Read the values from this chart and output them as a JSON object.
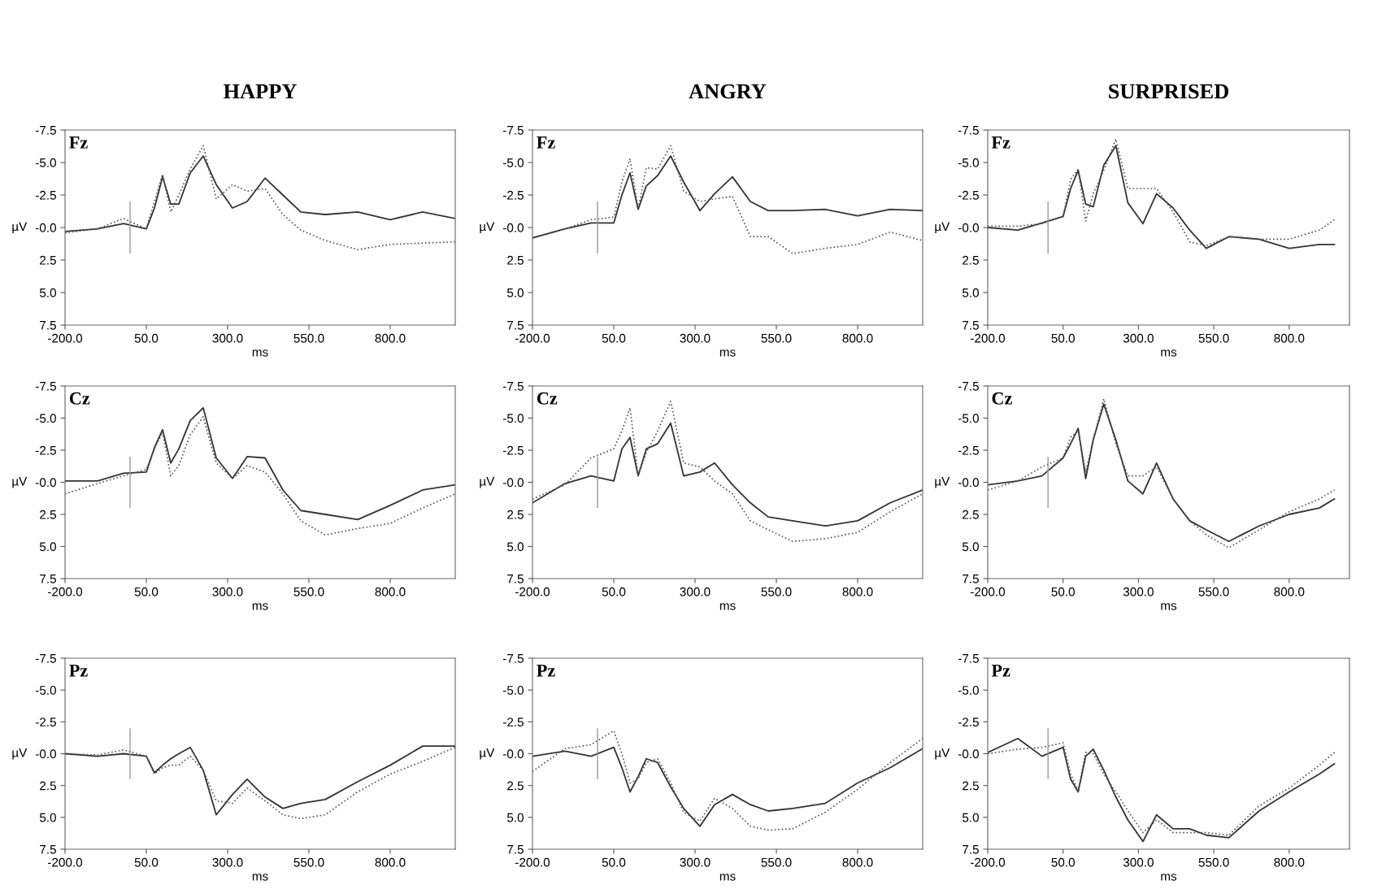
{
  "chart_data": [
    {
      "type": "line",
      "title": "HAPPY",
      "xlabel": "ms",
      "ylabel": "µV",
      "annotations": [
        "Fz"
      ],
      "x": [
        -200,
        -100,
        -20,
        50,
        75,
        100,
        125,
        150,
        185,
        225,
        265,
        315,
        360,
        415,
        470,
        525,
        600,
        700,
        800,
        900,
        1000
      ],
      "series": [
        {
          "color": "#333333",
          "line_style": "solid",
          "values": [
            0.3,
            0.1,
            -0.3,
            0.1,
            -1.5,
            -3.9,
            -1.8,
            -1.8,
            -4.2,
            -5.5,
            -3.3,
            -1.5,
            -2.0,
            -3.8,
            -2.5,
            -1.2,
            -1.0,
            -1.2,
            -0.6,
            -1.2,
            -0.7
          ]
        },
        {
          "color": "#555555",
          "line_style": "dotted",
          "values": [
            0.4,
            0.1,
            -0.7,
            0.1,
            -2.0,
            -4.1,
            -1.2,
            -2.5,
            -4.5,
            -6.3,
            -2.2,
            -3.3,
            -2.8,
            -3.0,
            -1.0,
            0.2,
            1.0,
            1.7,
            1.3,
            1.2,
            1.1
          ]
        }
      ],
      "xlim": [
        -200,
        1000
      ],
      "ylim": [
        7.5,
        -7.5
      ],
      "xticks": [
        {
          "value": -200,
          "label": "-200.0"
        },
        {
          "value": 50,
          "label": "50.0"
        },
        {
          "value": 300,
          "label": "300.0"
        },
        {
          "value": 550,
          "label": "550.0"
        },
        {
          "value": 800,
          "label": "800.0"
        }
      ],
      "yticks": [
        {
          "value": -7.5,
          "label": "-7.5"
        },
        {
          "value": -5,
          "label": "-5.0"
        },
        {
          "value": -2.5,
          "label": "-2.5"
        },
        {
          "value": 0,
          "label": "-0.0"
        },
        {
          "value": 2.5,
          "label": "2.5"
        },
        {
          "value": 5,
          "label": "5.0"
        },
        {
          "value": 7.5,
          "label": "7.5"
        }
      ],
      "ref_lines": [
        {
          "axis": "x",
          "value": 0,
          "color": "#999999"
        }
      ]
    },
    {
      "type": "line",
      "title": "ANGRY",
      "xlabel": "ms",
      "ylabel": "µV",
      "annotations": [
        "Fz"
      ],
      "x": [
        -200,
        -100,
        -20,
        50,
        75,
        100,
        125,
        150,
        185,
        225,
        265,
        315,
        360,
        415,
        470,
        525,
        600,
        700,
        800,
        900,
        1000
      ],
      "series": [
        {
          "color": "#333333",
          "line_style": "solid",
          "values": [
            0.8,
            0.1,
            -0.35,
            -0.35,
            -2.5,
            -4.2,
            -1.4,
            -3.2,
            -4.0,
            -5.5,
            -3.5,
            -1.3,
            -2.6,
            -3.9,
            -2.0,
            -1.3,
            -1.3,
            -1.4,
            -0.9,
            -1.4,
            -1.3
          ]
        },
        {
          "color": "#555555",
          "line_style": "dotted",
          "values": [
            0.8,
            0.1,
            -0.6,
            -0.8,
            -3.5,
            -5.3,
            -1.4,
            -4.6,
            -4.5,
            -6.3,
            -2.8,
            -2.0,
            -2.2,
            -2.4,
            0.7,
            0.7,
            2.0,
            1.6,
            1.3,
            0.35,
            1.0
          ]
        }
      ],
      "xlim": [
        -200,
        1000
      ],
      "ylim": [
        7.5,
        -7.5
      ],
      "xticks": [
        {
          "value": -200,
          "label": "-200.0"
        },
        {
          "value": 50,
          "label": "50.0"
        },
        {
          "value": 300,
          "label": "300.0"
        },
        {
          "value": 550,
          "label": "550.0"
        },
        {
          "value": 800,
          "label": "800.0"
        }
      ],
      "yticks": [
        {
          "value": -7.5,
          "label": "-7.5"
        },
        {
          "value": -5,
          "label": "-5.0"
        },
        {
          "value": -2.5,
          "label": "-2.5"
        },
        {
          "value": 0,
          "label": "-0.0"
        },
        {
          "value": 2.5,
          "label": "2.5"
        },
        {
          "value": 5,
          "label": "5.0"
        },
        {
          "value": 7.5,
          "label": "7.5"
        }
      ],
      "ref_lines": [
        {
          "axis": "x",
          "value": 0,
          "color": "#999999"
        }
      ]
    },
    {
      "type": "line",
      "title": "SURPRISED",
      "xlabel": "ms",
      "ylabel": "µV",
      "annotations": [
        "Fz"
      ],
      "x": [
        -200,
        -100,
        -20,
        50,
        75,
        100,
        125,
        150,
        185,
        225,
        265,
        315,
        360,
        415,
        470,
        525,
        600,
        700,
        800,
        900,
        950
      ],
      "series": [
        {
          "color": "#333333",
          "line_style": "solid",
          "values": [
            0,
            0.2,
            -0.35,
            -0.85,
            -3.0,
            -4.4,
            -1.8,
            -1.6,
            -4.8,
            -6.3,
            -1.9,
            -0.3,
            -2.6,
            -1.5,
            0.2,
            1.6,
            0.7,
            0.9,
            1.6,
            1.3,
            1.3
          ]
        },
        {
          "color": "#555555",
          "line_style": "dotted",
          "values": [
            -0.1,
            -0.1,
            -0.3,
            -0.85,
            -3.7,
            -4.5,
            -0.5,
            -2.6,
            -4.4,
            -6.8,
            -3.0,
            -3.0,
            -3.0,
            -1.2,
            1.1,
            1.4,
            0.7,
            0.9,
            0.9,
            0.2,
            -0.6
          ]
        }
      ],
      "xlim": [
        -200,
        1000
      ],
      "ylim": [
        7.5,
        -7.5
      ],
      "xticks": [
        {
          "value": -200,
          "label": "-200.0"
        },
        {
          "value": 50,
          "label": "50.0"
        },
        {
          "value": 300,
          "label": "300.0"
        },
        {
          "value": 550,
          "label": "550.0"
        },
        {
          "value": 800,
          "label": "800.0"
        }
      ],
      "yticks": [
        {
          "value": -7.5,
          "label": "-7.5"
        },
        {
          "value": -5,
          "label": "-5.0"
        },
        {
          "value": -2.5,
          "label": "-2.5"
        },
        {
          "value": 0,
          "label": "-0.0"
        },
        {
          "value": 2.5,
          "label": "2.5"
        },
        {
          "value": 5,
          "label": "5.0"
        },
        {
          "value": 7.5,
          "label": "7.5"
        }
      ],
      "ref_lines": [
        {
          "axis": "x",
          "value": 0,
          "color": "#999999"
        }
      ]
    },
    {
      "type": "line",
      "xlabel": "ms",
      "ylabel": "µV",
      "annotations": [
        "Cz"
      ],
      "x": [
        -200,
        -100,
        -20,
        50,
        75,
        100,
        125,
        150,
        185,
        225,
        265,
        315,
        360,
        415,
        470,
        525,
        600,
        700,
        800,
        900,
        1000
      ],
      "series": [
        {
          "color": "#333333",
          "line_style": "solid",
          "values": [
            -0.1,
            -0.1,
            -0.7,
            -0.8,
            -2.7,
            -4.1,
            -1.5,
            -2.6,
            -4.8,
            -5.8,
            -1.9,
            -0.3,
            -2.0,
            -1.9,
            0.6,
            2.2,
            2.5,
            2.9,
            1.8,
            0.6,
            0.2
          ]
        },
        {
          "color": "#555555",
          "line_style": "dotted",
          "values": [
            0.9,
            0.1,
            -0.5,
            -1.0,
            -2.6,
            -3.9,
            -0.5,
            -1.3,
            -3.7,
            -5.1,
            -1.5,
            -0.3,
            -1.3,
            -0.8,
            0.9,
            3.0,
            4.1,
            3.6,
            3.2,
            2.0,
            0.9
          ]
        }
      ],
      "xlim": [
        -200,
        1000
      ],
      "ylim": [
        7.5,
        -7.5
      ],
      "xticks": [
        {
          "value": -200,
          "label": "-200.0"
        },
        {
          "value": 50,
          "label": "50.0"
        },
        {
          "value": 300,
          "label": "300.0"
        },
        {
          "value": 550,
          "label": "550.0"
        },
        {
          "value": 800,
          "label": "800.0"
        }
      ],
      "yticks": [
        {
          "value": -7.5,
          "label": "-7.5"
        },
        {
          "value": -5,
          "label": "-5.0"
        },
        {
          "value": -2.5,
          "label": "-2.5"
        },
        {
          "value": 0,
          "label": "-0.0"
        },
        {
          "value": 2.5,
          "label": "2.5"
        },
        {
          "value": 5,
          "label": "5.0"
        },
        {
          "value": 7.5,
          "label": "7.5"
        }
      ],
      "ref_lines": [
        {
          "axis": "x",
          "value": 0,
          "color": "#999999"
        }
      ]
    },
    {
      "type": "line",
      "xlabel": "ms",
      "ylabel": "µV",
      "annotations": [
        "Cz"
      ],
      "x": [
        -200,
        -100,
        -20,
        50,
        75,
        100,
        125,
        150,
        185,
        225,
        265,
        315,
        360,
        415,
        470,
        525,
        600,
        700,
        800,
        900,
        1000
      ],
      "series": [
        {
          "color": "#333333",
          "line_style": "solid",
          "values": [
            1.6,
            0.1,
            -0.5,
            -0.1,
            -2.6,
            -3.5,
            -0.5,
            -2.6,
            -3.0,
            -4.6,
            -0.5,
            -0.8,
            -1.5,
            0.2,
            1.6,
            2.7,
            3.0,
            3.4,
            3.0,
            1.6,
            0.6
          ]
        },
        {
          "color": "#555555",
          "line_style": "dotted",
          "values": [
            1.3,
            0.2,
            -1.9,
            -2.6,
            -4.0,
            -5.8,
            -0.5,
            -2.3,
            -4.0,
            -6.3,
            -1.5,
            -1.2,
            -0.1,
            0.9,
            3.0,
            3.7,
            4.6,
            4.4,
            3.9,
            2.3,
            0.9
          ]
        }
      ],
      "xlim": [
        -200,
        1000
      ],
      "ylim": [
        7.5,
        -7.5
      ],
      "xticks": [
        {
          "value": -200,
          "label": "-200.0"
        },
        {
          "value": 50,
          "label": "50.0"
        },
        {
          "value": 300,
          "label": "300.0"
        },
        {
          "value": 550,
          "label": "550.0"
        },
        {
          "value": 800,
          "label": "800.0"
        }
      ],
      "yticks": [
        {
          "value": -7.5,
          "label": "-7.5"
        },
        {
          "value": -5,
          "label": "-5.0"
        },
        {
          "value": -2.5,
          "label": "-2.5"
        },
        {
          "value": 0,
          "label": "-0.0"
        },
        {
          "value": 2.5,
          "label": "2.5"
        },
        {
          "value": 5,
          "label": "5.0"
        },
        {
          "value": 7.5,
          "label": "7.5"
        }
      ],
      "ref_lines": [
        {
          "axis": "x",
          "value": 0,
          "color": "#999999"
        }
      ]
    },
    {
      "type": "line",
      "xlabel": "ms",
      "ylabel": "µV",
      "annotations": [
        "Cz"
      ],
      "x": [
        -200,
        -100,
        -20,
        50,
        75,
        100,
        125,
        150,
        185,
        225,
        265,
        315,
        360,
        415,
        470,
        525,
        600,
        700,
        800,
        900,
        950
      ],
      "series": [
        {
          "color": "#333333",
          "line_style": "solid",
          "values": [
            0.2,
            -0.1,
            -0.5,
            -1.9,
            -3.0,
            -4.2,
            -0.3,
            -3.3,
            -6.1,
            -3.3,
            -0.1,
            0.9,
            -1.5,
            1.3,
            3.0,
            3.7,
            4.6,
            3.4,
            2.5,
            2.0,
            1.3
          ]
        },
        {
          "color": "#555555",
          "line_style": "dotted",
          "values": [
            0.6,
            -0.1,
            -1.2,
            -1.9,
            -3.5,
            -4.0,
            -0.8,
            -3.3,
            -6.5,
            -3.0,
            -0.5,
            -0.5,
            -1.2,
            1.3,
            3.0,
            4.1,
            5.1,
            3.7,
            2.3,
            1.3,
            0.6
          ]
        }
      ],
      "xlim": [
        -200,
        1000
      ],
      "ylim": [
        7.5,
        -7.5
      ],
      "xticks": [
        {
          "value": -200,
          "label": "-200.0"
        },
        {
          "value": 50,
          "label": "50.0"
        },
        {
          "value": 300,
          "label": "300.0"
        },
        {
          "value": 550,
          "label": "550.0"
        },
        {
          "value": 800,
          "label": "800.0"
        }
      ],
      "yticks": [
        {
          "value": -7.5,
          "label": "-7.5"
        },
        {
          "value": -5,
          "label": "-5.0"
        },
        {
          "value": -2.5,
          "label": "-2.5"
        },
        {
          "value": 0,
          "label": "-0.0"
        },
        {
          "value": 2.5,
          "label": "2.5"
        },
        {
          "value": 5,
          "label": "5.0"
        },
        {
          "value": 7.5,
          "label": "7.5"
        }
      ],
      "ref_lines": [
        {
          "axis": "x",
          "value": 0,
          "color": "#999999"
        }
      ]
    },
    {
      "type": "line",
      "xlabel": "ms",
      "ylabel": "µV",
      "annotations": [
        "Pz"
      ],
      "x": [
        -200,
        -100,
        -20,
        50,
        75,
        100,
        125,
        150,
        185,
        225,
        265,
        315,
        360,
        415,
        470,
        525,
        600,
        700,
        800,
        900,
        1000
      ],
      "series": [
        {
          "color": "#333333",
          "line_style": "solid",
          "values": [
            0,
            0.2,
            0,
            0.2,
            1.5,
            0.9,
            0.4,
            0,
            -0.5,
            1.3,
            4.8,
            3.2,
            2.0,
            3.4,
            4.3,
            3.9,
            3.6,
            2.2,
            0.9,
            -0.6,
            -0.6
          ]
        },
        {
          "color": "#555555",
          "line_style": "dotted",
          "values": [
            0,
            0.1,
            -0.3,
            0.2,
            1.6,
            1.1,
            0.9,
            0.9,
            0.2,
            1.3,
            3.7,
            3.9,
            2.7,
            3.7,
            4.8,
            5.1,
            4.8,
            3.0,
            1.6,
            0.6,
            -0.5
          ]
        }
      ],
      "xlim": [
        -200,
        1000
      ],
      "ylim": [
        7.5,
        -7.5
      ],
      "xticks": [
        {
          "value": -200,
          "label": "-200.0"
        },
        {
          "value": 50,
          "label": "50.0"
        },
        {
          "value": 300,
          "label": "300.0"
        },
        {
          "value": 550,
          "label": "550.0"
        },
        {
          "value": 800,
          "label": "800.0"
        }
      ],
      "yticks": [
        {
          "value": -7.5,
          "label": "-7.5"
        },
        {
          "value": -5,
          "label": "-5.0"
        },
        {
          "value": -2.5,
          "label": "-2.5"
        },
        {
          "value": 0,
          "label": "-0.0"
        },
        {
          "value": 2.5,
          "label": "2.5"
        },
        {
          "value": 5,
          "label": "5.0"
        },
        {
          "value": 7.5,
          "label": "7.5"
        }
      ],
      "ref_lines": [
        {
          "axis": "x",
          "value": 0,
          "color": "#999999"
        }
      ]
    },
    {
      "type": "line",
      "xlabel": "ms",
      "ylabel": "µV",
      "annotations": [
        "Pz"
      ],
      "x": [
        -200,
        -100,
        -20,
        50,
        75,
        100,
        125,
        150,
        185,
        225,
        265,
        315,
        360,
        415,
        470,
        525,
        600,
        700,
        800,
        900,
        1000
      ],
      "series": [
        {
          "color": "#333333",
          "line_style": "solid",
          "values": [
            0.2,
            -0.2,
            0.2,
            -0.5,
            1.1,
            3.0,
            1.8,
            0.4,
            0.7,
            2.6,
            4.3,
            5.7,
            4.0,
            3.2,
            4.0,
            4.5,
            4.3,
            3.9,
            2.3,
            1.1,
            -0.4
          ]
        },
        {
          "color": "#555555",
          "line_style": "dotted",
          "values": [
            1.4,
            -0.4,
            -0.7,
            -1.8,
            0,
            2.3,
            2.0,
            0.7,
            0.4,
            2.3,
            4.6,
            5.3,
            3.5,
            4.3,
            5.7,
            6.0,
            5.9,
            4.6,
            2.8,
            0.7,
            -1.2
          ]
        }
      ],
      "xlim": [
        -200,
        1000
      ],
      "ylim": [
        7.5,
        -7.5
      ],
      "xticks": [
        {
          "value": -200,
          "label": "-200.0"
        },
        {
          "value": 50,
          "label": "50.0"
        },
        {
          "value": 300,
          "label": "300.0"
        },
        {
          "value": 550,
          "label": "550.0"
        },
        {
          "value": 800,
          "label": "800.0"
        }
      ],
      "yticks": [
        {
          "value": -7.5,
          "label": "-7.5"
        },
        {
          "value": -5,
          "label": "-5.0"
        },
        {
          "value": -2.5,
          "label": "-2.5"
        },
        {
          "value": 0,
          "label": "-0.0"
        },
        {
          "value": 2.5,
          "label": "2.5"
        },
        {
          "value": 5,
          "label": "5.0"
        },
        {
          "value": 7.5,
          "label": "7.5"
        }
      ],
      "ref_lines": [
        {
          "axis": "x",
          "value": 0,
          "color": "#999999"
        }
      ]
    },
    {
      "type": "line",
      "xlabel": "ms",
      "ylabel": "µV",
      "annotations": [
        "Pz"
      ],
      "x": [
        -200,
        -100,
        -20,
        50,
        75,
        100,
        125,
        150,
        185,
        225,
        265,
        315,
        360,
        415,
        470,
        525,
        600,
        700,
        800,
        900,
        950
      ],
      "series": [
        {
          "color": "#333333",
          "line_style": "solid",
          "values": [
            -0.1,
            -1.2,
            0.2,
            -0.5,
            2.0,
            3.0,
            0.2,
            -0.35,
            1.3,
            3.4,
            5.2,
            6.9,
            4.8,
            5.9,
            5.9,
            6.4,
            6.6,
            4.5,
            3.0,
            1.6,
            0.8
          ]
        },
        {
          "color": "#555555",
          "line_style": "dotted",
          "values": [
            0,
            -0.35,
            -0.5,
            -0.85,
            1.6,
            2.9,
            -0.1,
            0,
            1.6,
            3.0,
            4.5,
            6.2,
            5.2,
            6.2,
            6.2,
            6.2,
            6.4,
            4.1,
            2.7,
            0.9,
            -0.1
          ]
        }
      ],
      "xlim": [
        -200,
        1000
      ],
      "ylim": [
        7.5,
        -7.5
      ],
      "xticks": [
        {
          "value": -200,
          "label": "-200.0"
        },
        {
          "value": 50,
          "label": "50.0"
        },
        {
          "value": 300,
          "label": "300.0"
        },
        {
          "value": 550,
          "label": "550.0"
        },
        {
          "value": 800,
          "label": "800.0"
        }
      ],
      "yticks": [
        {
          "value": -7.5,
          "label": "-7.5"
        },
        {
          "value": -5,
          "label": "-5.0"
        },
        {
          "value": -2.5,
          "label": "-2.5"
        },
        {
          "value": 0,
          "label": "-0.0"
        },
        {
          "value": 2.5,
          "label": "2.5"
        },
        {
          "value": 5,
          "label": "5.0"
        },
        {
          "value": 7.5,
          "label": "7.5"
        }
      ],
      "ref_lines": [
        {
          "axis": "x",
          "value": 0,
          "color": "#999999"
        }
      ]
    }
  ]
}
